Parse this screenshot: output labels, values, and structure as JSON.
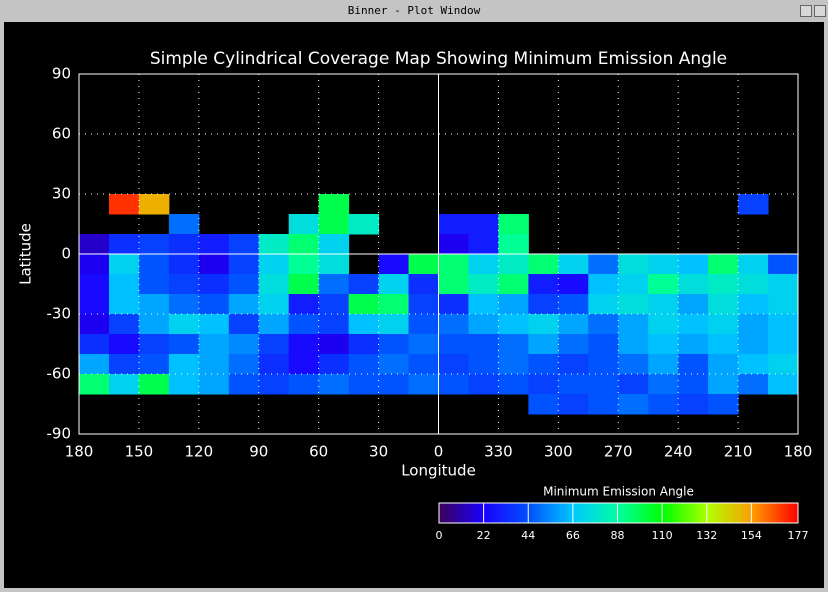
{
  "window": {
    "title": "Binner - Plot Window"
  },
  "chart_data": {
    "type": "heatmap",
    "title": "Simple Cylindrical Coverage Map Showing Minimum Emission Angle",
    "x_label": "Longitude",
    "y_label": "Latitude",
    "xlim": [
      180,
      -180
    ],
    "ylim": [
      -90,
      90
    ],
    "xticks": [
      180,
      150,
      120,
      90,
      60,
      30,
      0,
      {
        "value": -30,
        "label": "330"
      },
      {
        "value": -60,
        "label": "300"
      },
      {
        "value": -90,
        "label": "270"
      },
      {
        "value": -120,
        "label": "240"
      },
      {
        "value": -150,
        "label": "210"
      },
      {
        "value": -180,
        "label": "180"
      }
    ],
    "yticks": [
      -90,
      -60,
      -30,
      0,
      30,
      60,
      90
    ],
    "grid": true,
    "x": [
      172.5,
      157.5,
      142.5,
      127.5,
      112.5,
      97.5,
      82.5,
      67.5,
      52.5,
      37.5,
      22.5,
      7.5,
      -7.5,
      -22.5,
      -37.5,
      -52.5,
      -67.5,
      -82.5,
      -97.5,
      -112.5,
      -127.5,
      -142.5,
      -157.5,
      -172.5
    ],
    "y": [
      25,
      15,
      5,
      -5,
      -15,
      -25,
      -35,
      -45,
      -55,
      -65,
      -75
    ],
    "z": [
      [
        null,
        170,
        150,
        null,
        null,
        null,
        null,
        null,
        100,
        null,
        null,
        null,
        null,
        null,
        null,
        null,
        null,
        null,
        null,
        null,
        null,
        null,
        40,
        null
      ],
      [
        null,
        null,
        null,
        50,
        null,
        null,
        null,
        75,
        100,
        80,
        null,
        null,
        30,
        30,
        95,
        null,
        null,
        null,
        null,
        null,
        null,
        null,
        null,
        null
      ],
      [
        15,
        35,
        40,
        35,
        30,
        40,
        80,
        95,
        70,
        null,
        null,
        null,
        20,
        30,
        90,
        null,
        null,
        null,
        null,
        null,
        null,
        null,
        null,
        null
      ],
      [
        20,
        70,
        45,
        35,
        20,
        40,
        70,
        90,
        75,
        null,
        25,
        100,
        95,
        70,
        80,
        95,
        70,
        50,
        75,
        70,
        65,
        95,
        70,
        45
      ],
      [
        25,
        65,
        45,
        40,
        35,
        45,
        75,
        100,
        50,
        40,
        70,
        35,
        95,
        80,
        95,
        30,
        25,
        65,
        70,
        90,
        75,
        80,
        75,
        70
      ],
      [
        25,
        65,
        60,
        50,
        45,
        60,
        70,
        30,
        40,
        100,
        95,
        40,
        35,
        65,
        60,
        40,
        45,
        70,
        75,
        70,
        60,
        75,
        65,
        70
      ],
      [
        20,
        40,
        60,
        70,
        65,
        40,
        60,
        45,
        40,
        65,
        70,
        45,
        50,
        60,
        65,
        70,
        60,
        50,
        60,
        70,
        65,
        70,
        60,
        65
      ],
      [
        35,
        25,
        40,
        45,
        60,
        55,
        40,
        25,
        20,
        35,
        45,
        50,
        45,
        45,
        50,
        60,
        50,
        45,
        60,
        65,
        60,
        65,
        60,
        65
      ],
      [
        60,
        40,
        45,
        65,
        60,
        50,
        35,
        25,
        35,
        45,
        50,
        45,
        40,
        45,
        50,
        45,
        40,
        45,
        50,
        60,
        45,
        60,
        65,
        70
      ],
      [
        95,
        70,
        100,
        65,
        60,
        45,
        40,
        45,
        50,
        45,
        45,
        50,
        45,
        40,
        45,
        40,
        45,
        45,
        40,
        50,
        45,
        60,
        50,
        65
      ],
      [
        null,
        null,
        null,
        null,
        null,
        null,
        null,
        null,
        null,
        null,
        null,
        null,
        null,
        null,
        null,
        45,
        40,
        45,
        50,
        45,
        40,
        45,
        null,
        null
      ]
    ],
    "colorbar": {
      "title": "Minimum Emission Angle",
      "clim": [
        0,
        177
      ],
      "ticks": [
        0,
        22,
        44,
        66,
        88,
        110,
        132,
        154,
        177
      ]
    },
    "colormap": [
      "#3c0058",
      "#1a00ff",
      "#0050ff",
      "#00c8ff",
      "#00ffa0",
      "#00ff00",
      "#b0ff00",
      "#ff9a00",
      "#ff0000"
    ]
  }
}
